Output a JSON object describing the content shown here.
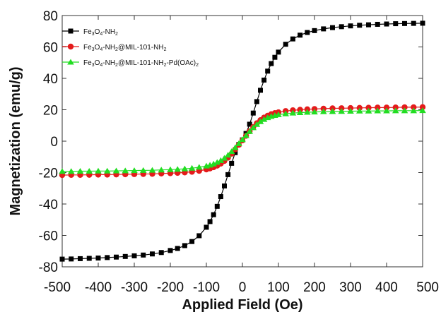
{
  "chart_data": {
    "type": "scatter",
    "title": "",
    "xlabel": "Applied Field (Oe)",
    "ylabel": "Magnetization (emu/g)",
    "xlim": [
      -500,
      500
    ],
    "ylim": [
      -80,
      80
    ],
    "xticks": [
      "-500",
      "-400",
      "-300",
      "-200",
      "-100",
      "0",
      "100",
      "200",
      "300",
      "400",
      "500"
    ],
    "yticks": [
      "-80",
      "-60",
      "-40",
      "-20",
      "0",
      "20",
      "40",
      "60",
      "80"
    ],
    "grid": false,
    "legend_position": "top-left",
    "x": [
      -500,
      -475,
      -450,
      -425,
      -400,
      -375,
      -350,
      -325,
      -300,
      -275,
      -250,
      -225,
      -200,
      -180,
      -160,
      -140,
      -120,
      -100,
      -90,
      -80,
      -70,
      -60,
      -50,
      -40,
      -30,
      -20,
      -10,
      0,
      10,
      20,
      30,
      40,
      50,
      60,
      70,
      80,
      90,
      100,
      120,
      140,
      160,
      180,
      200,
      225,
      250,
      275,
      300,
      325,
      350,
      375,
      400,
      425,
      450,
      475,
      500
    ],
    "series": [
      {
        "name": "Fe3O4-NH2",
        "color": "#000000",
        "marker": "square",
        "values": [
          -75.1,
          -75.0,
          -74.8,
          -74.6,
          -74.4,
          -74.1,
          -73.8,
          -73.4,
          -73.0,
          -72.5,
          -71.8,
          -70.9,
          -69.6,
          -68.3,
          -66.5,
          -63.9,
          -60.2,
          -54.8,
          -51.2,
          -46.8,
          -41.5,
          -35.3,
          -28.5,
          -21.3,
          -14.1,
          -7.3,
          -2.1,
          0.8,
          4.9,
          10.8,
          17.9,
          25.2,
          32.4,
          38.9,
          44.6,
          49.4,
          53.4,
          56.7,
          61.7,
          65.1,
          67.5,
          69.2,
          70.4,
          71.5,
          72.3,
          72.9,
          73.4,
          73.8,
          74.1,
          74.4,
          74.6,
          74.8,
          74.9,
          75.0,
          75.1
        ]
      },
      {
        "name": "Fe3O4-NH2@MIL-101-NH2",
        "color": "#e41b1b",
        "marker": "circle",
        "values": [
          -21.6,
          -21.5,
          -21.5,
          -21.4,
          -21.3,
          -21.3,
          -21.2,
          -21.1,
          -21.0,
          -20.9,
          -20.8,
          -20.6,
          -20.4,
          -20.2,
          -19.9,
          -19.5,
          -18.9,
          -18.0,
          -17.4,
          -16.6,
          -15.6,
          -14.3,
          -12.6,
          -10.5,
          -8.0,
          -5.2,
          -2.3,
          0.5,
          3.4,
          6.3,
          9.0,
          11.4,
          13.4,
          15.0,
          16.2,
          17.2,
          17.9,
          18.4,
          19.2,
          19.7,
          20.0,
          20.3,
          20.5,
          20.7,
          20.9,
          21.0,
          21.1,
          21.2,
          21.3,
          21.4,
          21.4,
          21.5,
          21.6,
          21.6,
          21.7
        ]
      },
      {
        "name": "Fe3O4-NH2@MIL-101-NH2-Pd(OAc)2",
        "color": "#22dd22",
        "marker": "triangle",
        "values": [
          -19.2,
          -19.2,
          -19.1,
          -19.1,
          -19.0,
          -19.0,
          -18.9,
          -18.8,
          -18.7,
          -18.6,
          -18.5,
          -18.3,
          -18.1,
          -17.9,
          -17.6,
          -17.2,
          -16.6,
          -15.8,
          -15.2,
          -14.5,
          -13.5,
          -12.3,
          -10.8,
          -8.9,
          -6.6,
          -4.1,
          -1.5,
          1.0,
          3.6,
          6.2,
          8.6,
          10.7,
          12.5,
          13.9,
          15.0,
          15.8,
          16.4,
          16.9,
          17.5,
          17.9,
          18.2,
          18.4,
          18.6,
          18.8,
          18.9,
          19.0,
          19.1,
          19.2,
          19.2,
          19.3,
          19.3,
          19.4,
          19.4,
          19.4,
          19.5
        ]
      }
    ]
  },
  "legend": {
    "entries": [
      {
        "pre": "Fe",
        "sub1": "3",
        "mid": "O",
        "sub2": "4",
        "post": "-NH",
        "sub3": "2",
        "tail": "",
        "sub4": "",
        "end": ""
      },
      {
        "pre": "Fe",
        "sub1": "3",
        "mid": "O",
        "sub2": "4",
        "post": "-NH",
        "sub3": "2",
        "tail": "@MIL-101-NH",
        "sub4": "2",
        "end": ""
      },
      {
        "pre": "Fe",
        "sub1": "3",
        "mid": "O",
        "sub2": "4",
        "post": "-NH",
        "sub3": "2",
        "tail": "@MIL-101-NH",
        "sub4": "2",
        "end": "-Pd(OAc)"
      }
    ],
    "last_sub": "2"
  }
}
